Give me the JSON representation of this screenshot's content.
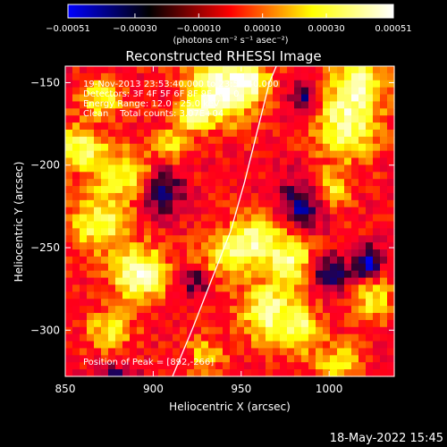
{
  "chart_data": {
    "type": "heatmap",
    "title": "Reconstructed RHESSI Image",
    "xlabel": "Heliocentric X (arcsec)",
    "ylabel": "Heliocentric Y (arcsec)",
    "xlim": [
      850,
      1037
    ],
    "ylim": [
      -328,
      -140
    ],
    "x_ticks": [
      850,
      900,
      950,
      1000
    ],
    "x_tick_labels": [
      "850",
      "900",
      "950",
      "1000"
    ],
    "y_ticks": [
      -150,
      -200,
      -250,
      -300
    ],
    "y_tick_labels": [
      "-150",
      "-200",
      "-250",
      "-300"
    ],
    "colorbar": {
      "range": [
        -0.00051,
        0.00051
      ],
      "ticks": [
        -0.00051,
        -0.0003,
        -0.0001,
        0.0001,
        0.0003,
        0.00051
      ],
      "tick_labels": [
        "-0.00051",
        "-0.00030",
        "-0.00010",
        "0.00010",
        "0.00030",
        "0.00051"
      ],
      "unit_label": "(photons cm⁻² s⁻¹ asec⁻²)",
      "colors": [
        "#0000ff",
        "#000000",
        "#ff0000",
        "#ffff00",
        "#ffffff"
      ]
    },
    "annotations": {
      "time_range": "19-Nov-2013 23:53:40.000 to 23:59:40.000",
      "detectors": "Detectors: 3F 4F 5F 6F 8F 9F Att: 0",
      "energy_range": "Energy Range: 12.0 - 25.0 keV",
      "clean_counts": "Clean    Total counts: 3.07E+04",
      "peak_position": "Position of Peak = [892,-266]"
    },
    "peak": [
      892,
      -266
    ],
    "limb_curve": [
      [
        911,
        -328
      ],
      [
        922,
        -300
      ],
      [
        933,
        -270
      ],
      [
        944,
        -240
      ],
      [
        952,
        -210
      ],
      [
        959,
        -180
      ],
      [
        966,
        -150
      ],
      [
        970,
        -140
      ]
    ],
    "bright_sources": [
      {
        "x": 938,
        "y": -155,
        "sx": 13,
        "sy": 14,
        "amp": 1.0
      },
      {
        "x": 955,
        "y": -148,
        "sx": 8,
        "sy": 8,
        "amp": 0.7
      },
      {
        "x": 922,
        "y": -170,
        "sx": 6,
        "sy": 7,
        "amp": 0.55
      },
      {
        "x": 870,
        "y": -160,
        "sx": 9,
        "sy": 8,
        "amp": 0.65
      },
      {
        "x": 858,
        "y": -190,
        "sx": 10,
        "sy": 9,
        "amp": 0.75
      },
      {
        "x": 885,
        "y": -205,
        "sx": 12,
        "sy": 10,
        "amp": 0.7
      },
      {
        "x": 910,
        "y": -188,
        "sx": 7,
        "sy": 7,
        "amp": 0.5
      },
      {
        "x": 870,
        "y": -235,
        "sx": 12,
        "sy": 12,
        "amp": 0.75
      },
      {
        "x": 892,
        "y": -266,
        "sx": 11,
        "sy": 11,
        "amp": 1.0
      },
      {
        "x": 875,
        "y": -300,
        "sx": 9,
        "sy": 8,
        "amp": 0.6
      },
      {
        "x": 940,
        "y": -255,
        "sx": 10,
        "sy": 12,
        "amp": 0.6
      },
      {
        "x": 957,
        "y": -245,
        "sx": 8,
        "sy": 10,
        "amp": 0.75
      },
      {
        "x": 978,
        "y": -255,
        "sx": 10,
        "sy": 14,
        "amp": 0.8
      },
      {
        "x": 965,
        "y": -290,
        "sx": 10,
        "sy": 12,
        "amp": 0.85
      },
      {
        "x": 985,
        "y": -300,
        "sx": 8,
        "sy": 9,
        "amp": 0.7
      },
      {
        "x": 1010,
        "y": -175,
        "sx": 12,
        "sy": 15,
        "amp": 0.85
      },
      {
        "x": 1018,
        "y": -150,
        "sx": 10,
        "sy": 10,
        "amp": 0.75
      },
      {
        "x": 1000,
        "y": -215,
        "sx": 8,
        "sy": 9,
        "amp": 0.6
      },
      {
        "x": 1025,
        "y": -280,
        "sx": 8,
        "sy": 10,
        "amp": 0.6
      },
      {
        "x": 1005,
        "y": -320,
        "sx": 10,
        "sy": 8,
        "amp": 0.55
      },
      {
        "x": 930,
        "y": -315,
        "sx": 8,
        "sy": 8,
        "amp": 0.45
      }
    ],
    "dark_sources": [
      {
        "x": 905,
        "y": -215,
        "sx": 8,
        "sy": 10,
        "amp": 0.8
      },
      {
        "x": 985,
        "y": -225,
        "sx": 9,
        "sy": 12,
        "amp": 0.8
      },
      {
        "x": 1022,
        "y": -260,
        "sx": 6,
        "sy": 7,
        "amp": 0.9
      },
      {
        "x": 1000,
        "y": -265,
        "sx": 7,
        "sy": 8,
        "amp": 0.7
      },
      {
        "x": 925,
        "y": -270,
        "sx": 6,
        "sy": 6,
        "amp": 0.6
      },
      {
        "x": 985,
        "y": -160,
        "sx": 6,
        "sy": 6,
        "amp": 0.6
      },
      {
        "x": 880,
        "y": -330,
        "sx": 9,
        "sy": 6,
        "amp": 0.6
      }
    ]
  },
  "footer": {
    "datetime": "18-May-2022 15:45"
  }
}
